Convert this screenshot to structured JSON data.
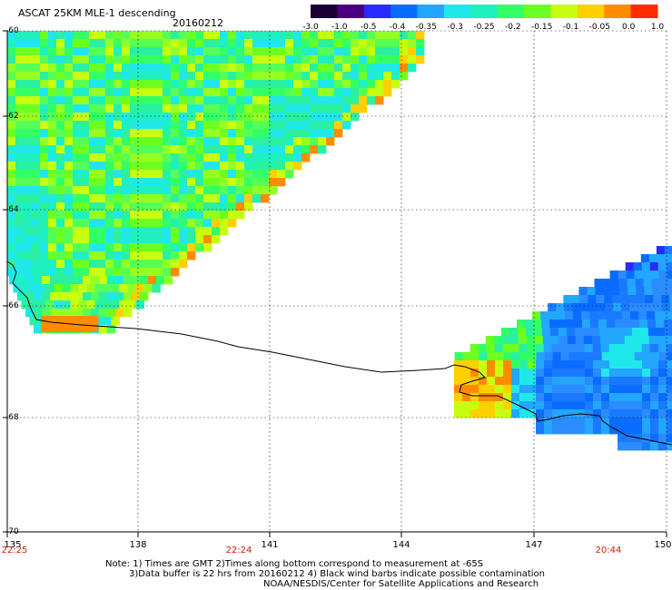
{
  "header": {
    "title": "ASCAT 25KM MLE-1 descending",
    "date": "20160212"
  },
  "colorbar": {
    "labels": [
      "-3.0",
      "-1.0",
      "-0.5",
      "-0.4",
      "-0.35",
      "-0.3",
      "-0.25",
      "-0.2",
      "-0.15",
      "-0.1",
      "-0.05",
      "0.0",
      "1.0"
    ],
    "colors": [
      "#1a0033",
      "#4b0080",
      "#2a2aff",
      "#0a6cff",
      "#22a6ff",
      "#20e8ea",
      "#1ef0c0",
      "#33ff66",
      "#6cff22",
      "#c8ff10",
      "#ffd000",
      "#ff8c00",
      "#ff2a00"
    ]
  },
  "axes": {
    "lat_labels": [
      "-60",
      "-62",
      "-64",
      "-66",
      "-68",
      "-70"
    ],
    "lon_labels": [
      "135",
      "138",
      "141",
      "144",
      "147",
      "150"
    ],
    "time_labels": [
      "22:25",
      "22:24",
      "20:44"
    ]
  },
  "notes": {
    "line1": "Note: 1) Times are GMT 2)Times along bottom correspond to measurement at -65S",
    "line2": "3)Data buffer is 22 hrs from 20160212 4) Black wind barbs indicate possible contamination",
    "line3": "NOAA/NESDIS/Center for Satellite Applications and Research"
  }
}
